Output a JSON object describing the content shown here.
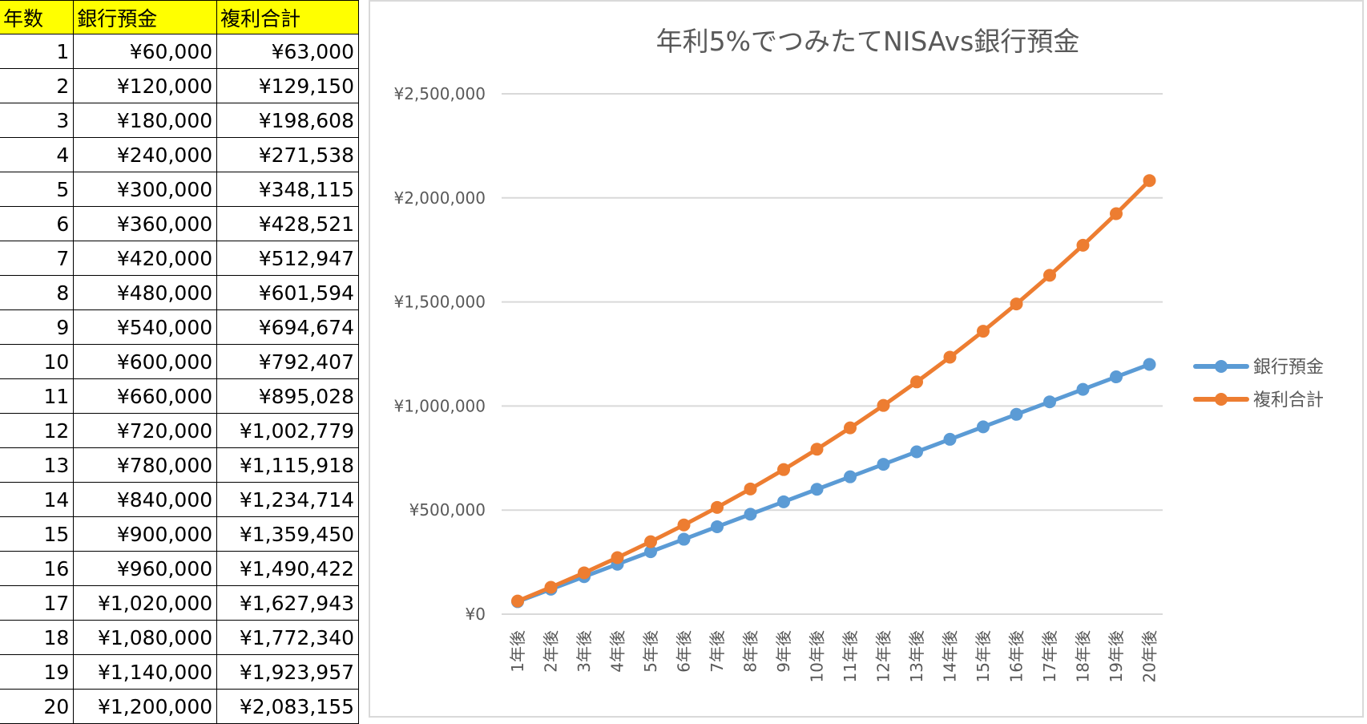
{
  "table": {
    "headers": [
      "年数",
      "銀行預金",
      "複利合計"
    ],
    "rows": [
      [
        "1",
        "¥60,000",
        "¥63,000"
      ],
      [
        "2",
        "¥120,000",
        "¥129,150"
      ],
      [
        "3",
        "¥180,000",
        "¥198,608"
      ],
      [
        "4",
        "¥240,000",
        "¥271,538"
      ],
      [
        "5",
        "¥300,000",
        "¥348,115"
      ],
      [
        "6",
        "¥360,000",
        "¥428,521"
      ],
      [
        "7",
        "¥420,000",
        "¥512,947"
      ],
      [
        "8",
        "¥480,000",
        "¥601,594"
      ],
      [
        "9",
        "¥540,000",
        "¥694,674"
      ],
      [
        "10",
        "¥600,000",
        "¥792,407"
      ],
      [
        "11",
        "¥660,000",
        "¥895,028"
      ],
      [
        "12",
        "¥720,000",
        "¥1,002,779"
      ],
      [
        "13",
        "¥780,000",
        "¥1,115,918"
      ],
      [
        "14",
        "¥840,000",
        "¥1,234,714"
      ],
      [
        "15",
        "¥900,000",
        "¥1,359,450"
      ],
      [
        "16",
        "¥960,000",
        "¥1,490,422"
      ],
      [
        "17",
        "¥1,020,000",
        "¥1,627,943"
      ],
      [
        "18",
        "¥1,080,000",
        "¥1,772,340"
      ],
      [
        "19",
        "¥1,140,000",
        "¥1,923,957"
      ],
      [
        "20",
        "¥1,200,000",
        "¥2,083,155"
      ]
    ],
    "header_color": "#ffff00"
  },
  "chart_data": {
    "type": "line",
    "title": "年利5%でつみたてNISAvs銀行預金",
    "xlabel": "",
    "ylabel": "",
    "categories": [
      "1年後",
      "2年後",
      "3年後",
      "4年後",
      "5年後",
      "6年後",
      "7年後",
      "8年後",
      "9年後",
      "10年後",
      "11年後",
      "12年後",
      "13年後",
      "14年後",
      "15年後",
      "16年後",
      "17年後",
      "18年後",
      "19年後",
      "20年後"
    ],
    "series": [
      {
        "name": "銀行預金",
        "color": "#5b9bd5",
        "values": [
          60000,
          120000,
          180000,
          240000,
          300000,
          360000,
          420000,
          480000,
          540000,
          600000,
          660000,
          720000,
          780000,
          840000,
          900000,
          960000,
          1020000,
          1080000,
          1140000,
          1200000
        ]
      },
      {
        "name": "複利合計",
        "color": "#ed7d31",
        "values": [
          63000,
          129150,
          198608,
          271538,
          348115,
          428521,
          512947,
          601594,
          694674,
          792407,
          895028,
          1002779,
          1115918,
          1234714,
          1359450,
          1490422,
          1627943,
          1772340,
          1923957,
          2083155
        ]
      }
    ],
    "ylim": [
      0,
      2500000
    ],
    "yticks": [
      0,
      500000,
      1000000,
      1500000,
      2000000,
      2500000
    ],
    "ytick_labels": [
      "¥0",
      "¥500,000",
      "¥1,000,000",
      "¥1,500,000",
      "¥2,000,000",
      "¥2,500,000"
    ],
    "grid": true,
    "legend": "right"
  }
}
